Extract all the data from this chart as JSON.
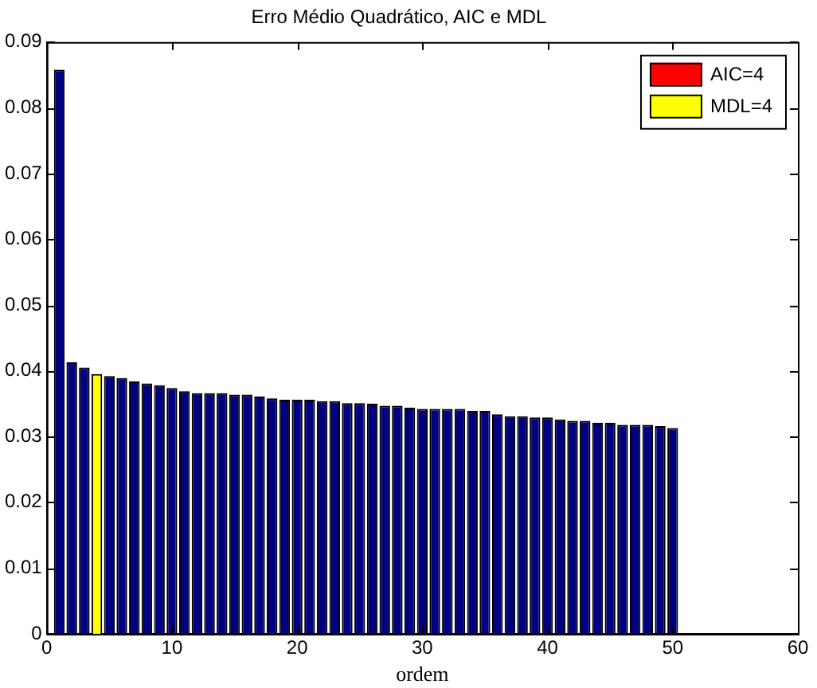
{
  "chart_data": {
    "type": "bar",
    "title": "Erro Médio Quadrático, AIC e MDL",
    "xlabel": "ordem",
    "x": [
      1,
      2,
      3,
      4,
      5,
      6,
      7,
      8,
      9,
      10,
      11,
      12,
      13,
      14,
      15,
      16,
      17,
      18,
      19,
      20,
      21,
      22,
      23,
      24,
      25,
      26,
      27,
      28,
      29,
      30,
      31,
      32,
      33,
      34,
      35,
      36,
      37,
      38,
      39,
      40,
      41,
      42,
      43,
      44,
      45,
      46,
      47,
      48,
      49,
      50
    ],
    "series": [
      {
        "color": "#000080",
        "values": [
          0.0858,
          0.0413,
          0.0405,
          null,
          0.0392,
          0.0389,
          0.0384,
          0.0381,
          0.0378,
          0.0374,
          0.0369,
          0.0366,
          0.0366,
          0.0366,
          0.0364,
          0.0364,
          0.0361,
          0.0358,
          0.0356,
          0.0356,
          0.0356,
          0.0354,
          0.0354,
          0.0351,
          0.0351,
          0.035,
          0.0347,
          0.0347,
          0.0344,
          0.0342,
          0.0342,
          0.0342,
          0.0342,
          0.0339,
          0.0339,
          0.0334,
          0.0331,
          0.0331,
          0.0329,
          0.0329,
          0.0326,
          0.0324,
          0.0324,
          0.0321,
          0.0321,
          0.0318,
          0.0318,
          0.0318,
          0.0316,
          0.0313
        ]
      },
      {
        "name": "AIC=4",
        "color": "#ff0000",
        "values": [
          null,
          null,
          null,
          null,
          null,
          null,
          null,
          null,
          null,
          null,
          null,
          null,
          null,
          null,
          null,
          null,
          null,
          null,
          null,
          null,
          null,
          null,
          null,
          null,
          null,
          null,
          null,
          null,
          null,
          null,
          null,
          null,
          null,
          null,
          null,
          null,
          null,
          null,
          null,
          null,
          null,
          null,
          null,
          null,
          null,
          null,
          null,
          null,
          null,
          null
        ]
      },
      {
        "name": "MDL=4",
        "color": "#ffff00",
        "values": [
          null,
          null,
          null,
          0.0395,
          null,
          null,
          null,
          null,
          null,
          null,
          null,
          null,
          null,
          null,
          null,
          null,
          null,
          null,
          null,
          null,
          null,
          null,
          null,
          null,
          null,
          null,
          null,
          null,
          null,
          null,
          null,
          null,
          null,
          null,
          null,
          null,
          null,
          null,
          null,
          null,
          null,
          null,
          null,
          null,
          null,
          null,
          null,
          null,
          null,
          null
        ]
      }
    ],
    "xlim": [
      0,
      60
    ],
    "xticks": [
      0,
      10,
      20,
      30,
      40,
      50,
      60
    ],
    "ylim": [
      0,
      0.09
    ],
    "yticks": [
      0,
      0.01,
      0.02,
      0.03,
      0.04,
      0.05,
      0.06,
      0.07,
      0.08,
      0.09
    ],
    "grid": false,
    "legend": "top right"
  }
}
